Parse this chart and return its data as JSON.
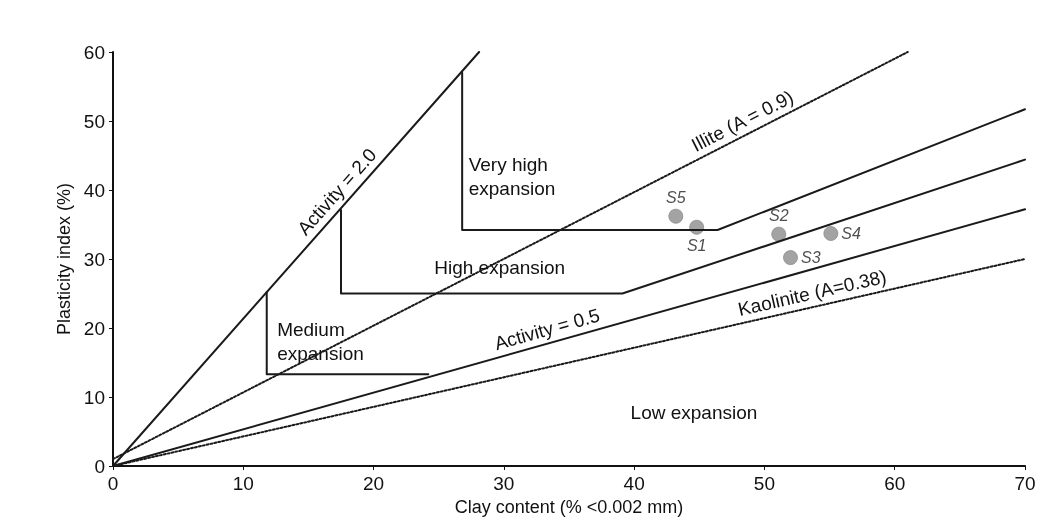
{
  "chart_data": {
    "type": "line",
    "xlabel": "Clay content (% <0.002 mm)",
    "ylabel": "Plasticity index (%)",
    "xlim": [
      0,
      70
    ],
    "xticks": [
      0,
      10,
      20,
      30,
      40,
      50,
      60,
      70
    ],
    "ylim": [
      0,
      60
    ],
    "yticks": [
      0,
      10,
      20,
      30,
      40,
      50,
      60
    ],
    "grid": false,
    "series": [
      {
        "name": "Activity = 2.0",
        "color": "#1a1a1a",
        "line_style": "solid",
        "marker": "none",
        "x": [
          0,
          28.1
        ],
        "values": [
          0,
          60
        ]
      },
      {
        "name": "Illite (A = 0.9)",
        "color": "#1a1a1a",
        "line_style": "dotted",
        "marker": "none",
        "x": [
          0,
          61
        ],
        "values": [
          1,
          60
        ]
      },
      {
        "color": "#1a1a1a",
        "line_style": "solid",
        "marker": "none",
        "x": [
          26.8,
          26.8,
          46.4,
          70
        ],
        "values": [
          57,
          34.2,
          34.2,
          51.7
        ]
      },
      {
        "color": "#1a1a1a",
        "line_style": "solid",
        "marker": "none",
        "x": [
          17.5,
          17.5,
          39.1,
          70
        ],
        "values": [
          37.1,
          25,
          25,
          44.4
        ]
      },
      {
        "color": "#1a1a1a",
        "line_style": "solid",
        "marker": "none",
        "x": [
          11.8,
          11.8,
          24.2
        ],
        "values": [
          25.2,
          13.3,
          13.3
        ]
      },
      {
        "name": "Activity = 0.5",
        "color": "#1a1a1a",
        "line_style": "solid",
        "marker": "none",
        "x": [
          0,
          70
        ],
        "values": [
          0,
          37.2
        ]
      },
      {
        "name": "Kaolinite (A=0.38)",
        "color": "#1a1a1a",
        "line_style": "dotted",
        "marker": "none",
        "x": [
          0,
          70
        ],
        "values": [
          0,
          30
        ]
      },
      {
        "type": "scatter",
        "color": "#8c8c8c",
        "marker": "circle",
        "x": [
          43.2,
          44.8,
          51.1,
          52,
          55.1
        ],
        "values": [
          36.2,
          34.6,
          33.6,
          30.2,
          33.7
        ],
        "value_labels": [
          "S5",
          "S1",
          "S2",
          "S3",
          "S4"
        ]
      }
    ],
    "annotations": [
      "Very high\nexpansion",
      "High expansion",
      "Medium\nexpansion",
      "Low expansion"
    ]
  }
}
